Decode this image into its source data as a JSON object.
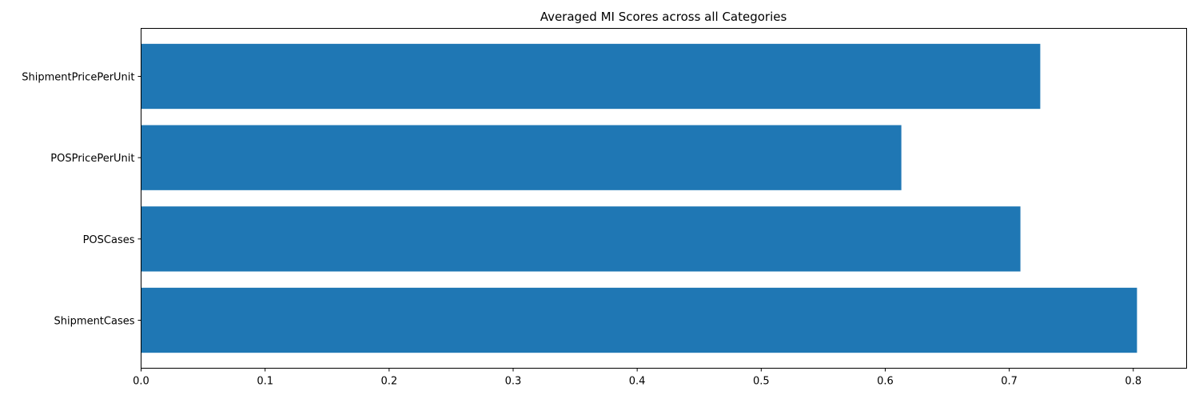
{
  "chart_data": {
    "type": "bar",
    "orientation": "horizontal",
    "title": "Averaged MI Scores across all Categories",
    "xlabel": "",
    "ylabel": "",
    "categories": [
      "ShipmentCases",
      "POSCases",
      "POSPricePerUnit",
      "ShipmentPricePerUnit"
    ],
    "values": [
      0.803,
      0.709,
      0.613,
      0.725
    ],
    "xlim": [
      0,
      0.843
    ],
    "xticks": [
      "0.0",
      "0.1",
      "0.2",
      "0.3",
      "0.4",
      "0.5",
      "0.6",
      "0.7",
      "0.8"
    ],
    "grid": false,
    "bar_color": "#1f77b4"
  }
}
